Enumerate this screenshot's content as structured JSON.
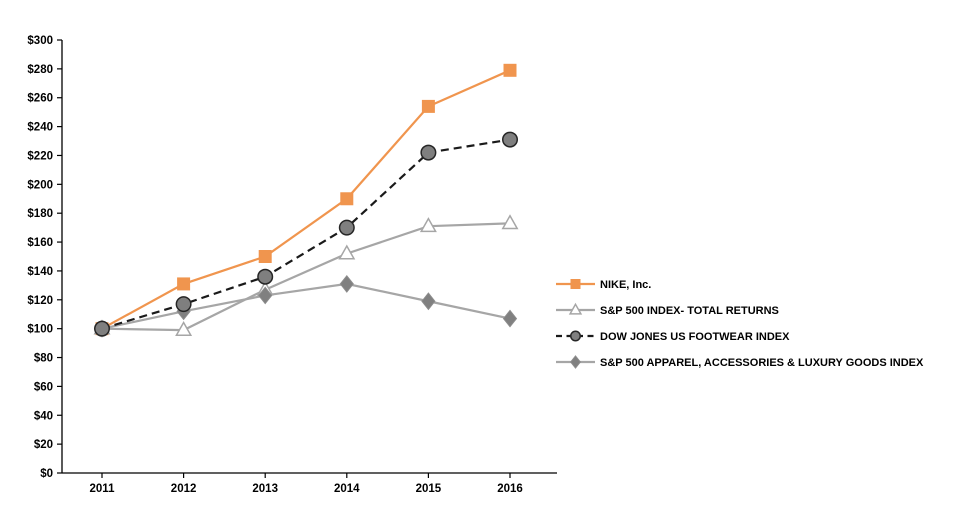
{
  "chart_data": {
    "type": "line",
    "title": "",
    "categories": [
      "2011",
      "2012",
      "2013",
      "2014",
      "2015",
      "2016"
    ],
    "series": [
      {
        "id": "nike",
        "name": "NIKE, Inc.",
        "values": [
          100,
          131,
          150,
          190,
          254,
          279
        ],
        "color": "#F0954E",
        "marker": "square",
        "marker_fill": "#F0954E",
        "marker_stroke": "#F0954E",
        "line": "solid"
      },
      {
        "id": "sp500-total-returns",
        "name": "S&P 500 INDEX- TOTAL RETURNS",
        "values": [
          100,
          99,
          127,
          152,
          171,
          173
        ],
        "color": "#A6A6A6",
        "marker": "triangle-open",
        "marker_fill": "#FFFFFF",
        "marker_stroke": "#A6A6A6",
        "line": "solid"
      },
      {
        "id": "dow-jones-us-footwear",
        "name": "DOW JONES US FOOTWEAR INDEX",
        "values": [
          100,
          117,
          136,
          170,
          222,
          231
        ],
        "color": "#1A1A1A",
        "marker": "circle",
        "marker_fill": "#7F7F7F",
        "marker_stroke": "#262626",
        "line": "dashed"
      },
      {
        "id": "sp500-apparel",
        "name": "S&P 500 APPAREL, ACCESSORIES & LUXURY GOODS INDEX",
        "values": [
          100,
          112,
          123,
          131,
          119,
          107
        ],
        "color": "#A6A6A6",
        "marker": "diamond",
        "marker_fill": "#808080",
        "marker_stroke": "#8C8C8C",
        "line": "solid"
      }
    ],
    "y_axis": {
      "min": 0,
      "max": 300,
      "step": 20,
      "prefix": "$",
      "tick_labels": [
        "$0",
        "$20",
        "$40",
        "$60",
        "$80",
        "$100",
        "$120",
        "$140",
        "$160",
        "$180",
        "$200",
        "$220",
        "$240",
        "$260",
        "$280",
        "$300"
      ]
    },
    "x_axis": {
      "tick_labels": [
        "2011",
        "2012",
        "2013",
        "2014",
        "2015",
        "2016"
      ]
    },
    "legend_position": "right",
    "grid": false,
    "background_color": "#FFFFFF",
    "axis_color": "#000000"
  }
}
